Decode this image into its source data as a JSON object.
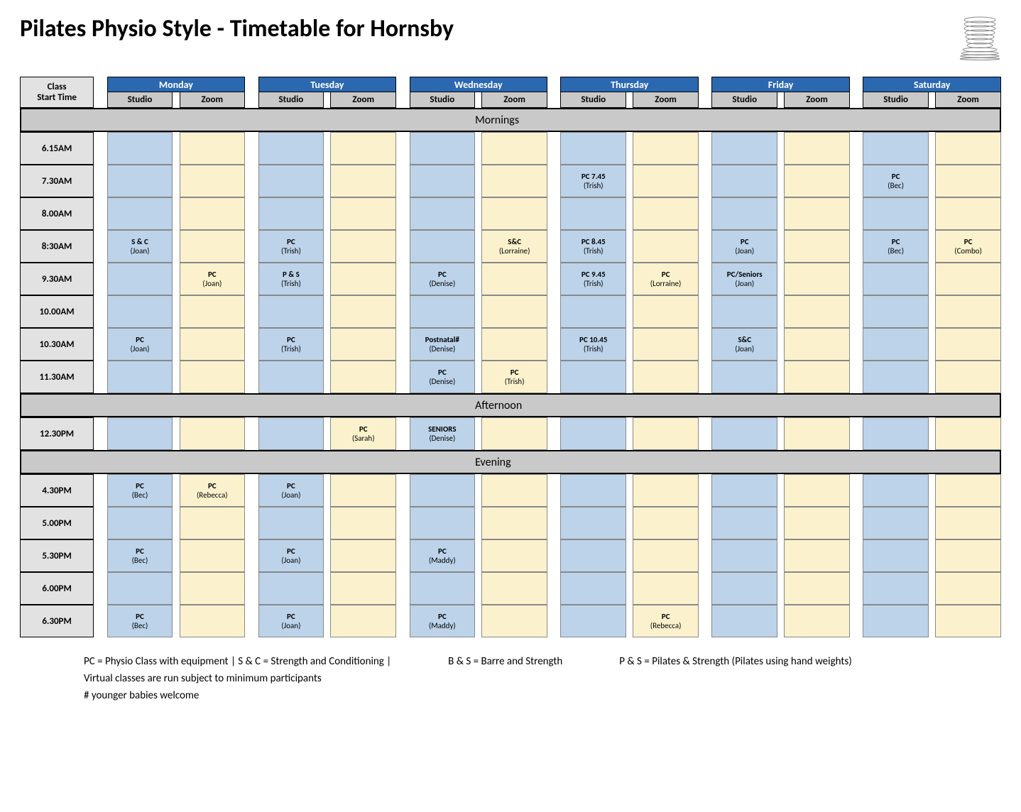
{
  "title": "Pilates Physio Style -  Timetable for Hornsby",
  "colors": {
    "day_header_bg": "#2b68b0",
    "day_header_text": "#ffffff",
    "sub_header_bg": "#c9c9c9",
    "time_header_bg": "#e2e2e2",
    "time_cell_bg": "#e2e2e2",
    "section_bg": "#c9c9c9",
    "studio_cell_bg": "#bcd3ea",
    "zoom_cell_bg": "#fbf2cd",
    "border": "#000000",
    "cell_border": "#888888",
    "page_bg": "#ffffff"
  },
  "days": [
    "Monday",
    "Tuesday",
    "Wednesday",
    "Thursday",
    "Friday",
    "Saturday"
  ],
  "sub_columns": [
    "Studio",
    "Zoom"
  ],
  "time_header": "Class Start Time",
  "sections": [
    {
      "label": "Mornings",
      "rows": [
        {
          "time": "6.15AM",
          "cells": [
            [
              "",
              ""
            ],
            [
              "",
              ""
            ],
            [
              "",
              ""
            ],
            [
              "",
              ""
            ],
            [
              "",
              ""
            ],
            [
              "",
              ""
            ]
          ]
        },
        {
          "time": "7.30AM",
          "cells": [
            [
              "",
              ""
            ],
            [
              "",
              ""
            ],
            [
              "",
              ""
            ],
            [
              "PC 7.45|(Trish)",
              ""
            ],
            [
              "",
              ""
            ],
            [
              "PC|(Bec)",
              ""
            ]
          ]
        },
        {
          "time": "8.00AM",
          "cells": [
            [
              "",
              ""
            ],
            [
              "",
              ""
            ],
            [
              "",
              ""
            ],
            [
              "",
              ""
            ],
            [
              "",
              ""
            ],
            [
              "",
              ""
            ]
          ]
        },
        {
          "time": "8:30AM",
          "cells": [
            [
              "S & C|(Joan)",
              ""
            ],
            [
              "PC|(Trish)",
              ""
            ],
            [
              "",
              "S&C|(Lorraine)"
            ],
            [
              "PC 8.45|(Trish)",
              ""
            ],
            [
              "PC|(Joan)",
              ""
            ],
            [
              "PC|(Bec)",
              "PC|(Combo)"
            ]
          ]
        },
        {
          "time": "9.30AM",
          "cells": [
            [
              "",
              "PC|(Joan)"
            ],
            [
              "P & S|(Trish)",
              ""
            ],
            [
              "PC|(Denise)",
              ""
            ],
            [
              "PC 9.45|(Trish)",
              "PC|(Lorraine)"
            ],
            [
              "PC/Seniors|(Joan)",
              ""
            ],
            [
              "",
              ""
            ]
          ]
        },
        {
          "time": "10.00AM",
          "cells": [
            [
              "",
              ""
            ],
            [
              "",
              ""
            ],
            [
              "",
              ""
            ],
            [
              "",
              ""
            ],
            [
              "",
              ""
            ],
            [
              "",
              ""
            ]
          ]
        },
        {
          "time": "10.30AM",
          "cells": [
            [
              "PC|(Joan)",
              ""
            ],
            [
              "PC|(Trish)",
              ""
            ],
            [
              "Postnatal#|(Denise)",
              ""
            ],
            [
              "PC 10.45|(Trish)",
              ""
            ],
            [
              "S&C|(Joan)",
              ""
            ],
            [
              "",
              ""
            ]
          ]
        },
        {
          "time": "11.30AM",
          "cells": [
            [
              "",
              ""
            ],
            [
              "",
              ""
            ],
            [
              "PC|(Denise)",
              "PC|(Trish)"
            ],
            [
              "",
              ""
            ],
            [
              "",
              ""
            ],
            [
              "",
              ""
            ]
          ]
        }
      ]
    },
    {
      "label": "Afternoon",
      "rows": [
        {
          "time": "12.30PM",
          "cells": [
            [
              "",
              ""
            ],
            [
              "",
              "PC|(Sarah)"
            ],
            [
              "SENIORS|(Denise)",
              ""
            ],
            [
              "",
              ""
            ],
            [
              "",
              ""
            ],
            [
              "",
              ""
            ]
          ]
        }
      ]
    },
    {
      "label": "Evening",
      "rows": [
        {
          "time": "4.30PM",
          "cells": [
            [
              "PC|(Bec)",
              "PC|(Rebecca)"
            ],
            [
              "PC|(Joan)",
              ""
            ],
            [
              "",
              ""
            ],
            [
              "",
              ""
            ],
            [
              "",
              ""
            ],
            [
              "",
              ""
            ]
          ]
        },
        {
          "time": "5.00PM",
          "cells": [
            [
              "",
              ""
            ],
            [
              "",
              ""
            ],
            [
              "",
              ""
            ],
            [
              "",
              ""
            ],
            [
              "",
              ""
            ],
            [
              "",
              ""
            ]
          ]
        },
        {
          "time": "5.30PM",
          "cells": [
            [
              "PC|(Bec)",
              ""
            ],
            [
              "PC|(Joan)",
              ""
            ],
            [
              "PC|(Maddy)",
              ""
            ],
            [
              "",
              ""
            ],
            [
              "",
              ""
            ],
            [
              "",
              ""
            ]
          ]
        },
        {
          "time": "6.00PM",
          "cells": [
            [
              "",
              ""
            ],
            [
              "",
              ""
            ],
            [
              "",
              ""
            ],
            [
              "",
              ""
            ],
            [
              "",
              ""
            ],
            [
              "",
              ""
            ]
          ]
        },
        {
          "time": "6.30PM",
          "cells": [
            [
              "PC|(Bec)",
              ""
            ],
            [
              "PC|(Joan)",
              ""
            ],
            [
              "PC|(Maddy)",
              ""
            ],
            [
              "",
              "PC|(Rebecca)"
            ],
            [
              "",
              ""
            ],
            [
              "",
              ""
            ]
          ]
        }
      ]
    }
  ],
  "legend": {
    "line1a": "PC = Physio Class with equipment | S & C = Strength and Conditioning |",
    "line1b": "B & S = Barre and Strength",
    "line1c": "P & S  = Pilates & Strength (Pilates using hand weights)",
    "line2": "Virtual classes are run subject to minimum participants",
    "line3": "# younger babies welcome"
  }
}
